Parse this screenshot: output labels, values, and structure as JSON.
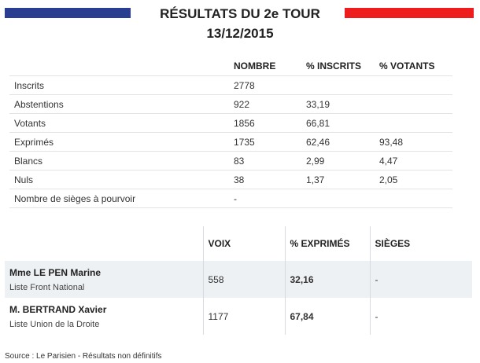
{
  "header": {
    "title_line1": "RÉSULTATS DU 2e TOUR",
    "title_line2": "13/12/2015"
  },
  "colors": {
    "flag_blue": "#2a3e91",
    "flag_red": "#ee1c1c"
  },
  "stats_table": {
    "headers": [
      "NOMBRE",
      "% INSCRITS",
      "% VOTANTS"
    ],
    "rows": [
      {
        "label": "Inscrits",
        "nombre": "2778",
        "inscrits": "",
        "votants": ""
      },
      {
        "label": "Abstentions",
        "nombre": "922",
        "inscrits": "33,19",
        "votants": ""
      },
      {
        "label": "Votants",
        "nombre": "1856",
        "inscrits": "66,81",
        "votants": ""
      },
      {
        "label": "Exprimés",
        "nombre": "1735",
        "inscrits": "62,46",
        "votants": "93,48"
      },
      {
        "label": "Blancs",
        "nombre": "83",
        "inscrits": "2,99",
        "votants": "4,47"
      },
      {
        "label": "Nuls",
        "nombre": "38",
        "inscrits": "1,37",
        "votants": "2,05"
      },
      {
        "label": "Nombre de sièges à pourvoir",
        "nombre": "-",
        "inscrits": "",
        "votants": ""
      }
    ]
  },
  "results_table": {
    "headers": [
      "VOIX",
      "% EXPRIMÉS",
      "SIÈGES"
    ],
    "rows": [
      {
        "name": "Mme LE PEN Marine",
        "list": "Liste Front National",
        "voix": "558",
        "exprimes": "32,16",
        "sieges": "-"
      },
      {
        "name": "M. BERTRAND Xavier",
        "list": "Liste Union de la Droite",
        "voix": "1177",
        "exprimes": "67,84",
        "sieges": "-"
      }
    ]
  },
  "source": "Source : Le Parisien - Résultats non définitifs"
}
